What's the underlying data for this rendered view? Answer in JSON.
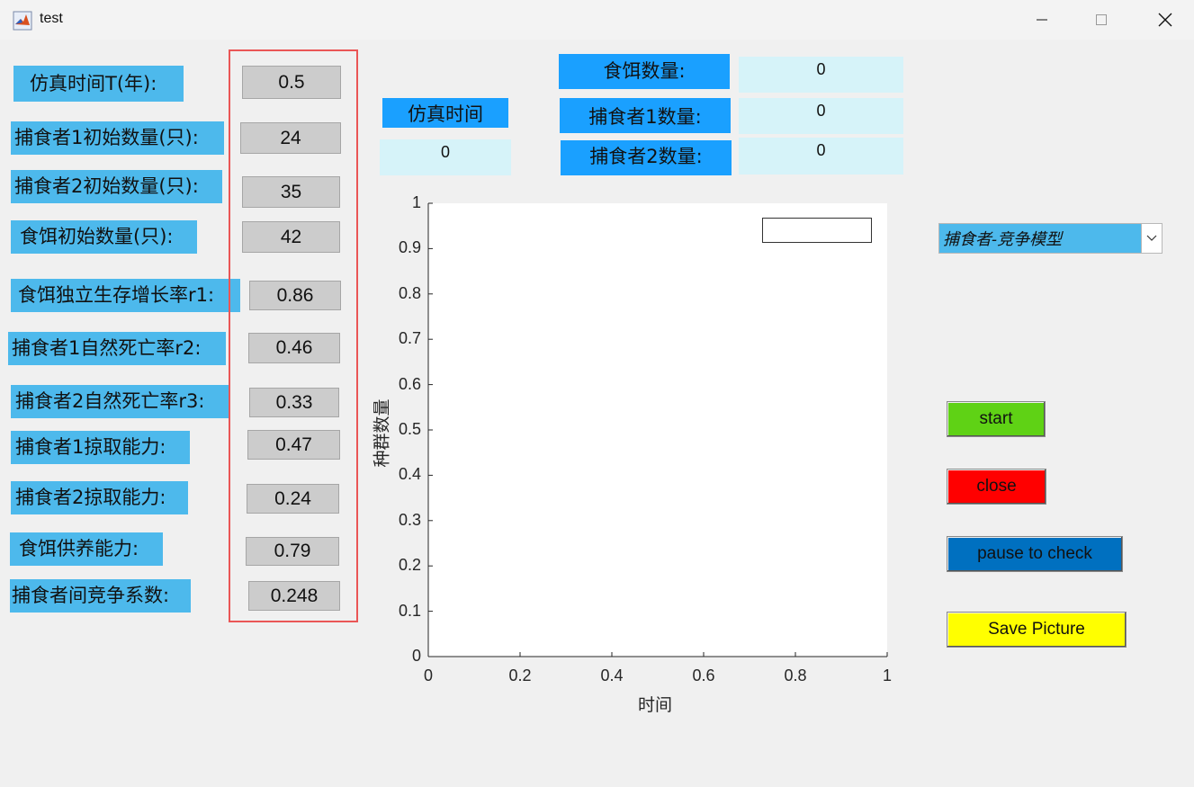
{
  "window": {
    "title": "test",
    "controls": [
      "minimize-icon",
      "maximize-icon",
      "close-icon"
    ]
  },
  "params": [
    {
      "label": "仿真时间T(年):",
      "value": "0.5"
    },
    {
      "label": "捕食者1初始数量(只):",
      "value": "24"
    },
    {
      "label": "捕食者2初始数量(只):",
      "value": "35"
    },
    {
      "label": "食饵初始数量(只):",
      "value": "42"
    },
    {
      "label": "食饵独立生存增长率r1:",
      "value": "0.86"
    },
    {
      "label": "捕食者1自然死亡率r2:",
      "value": "0.46"
    },
    {
      "label": "捕食者2自然死亡率r3:",
      "value": "0.33"
    },
    {
      "label": "捕食者1掠取能力:",
      "value": "0.47"
    },
    {
      "label": "捕食者2掠取能力:",
      "value": "0.24"
    },
    {
      "label": "食饵供养能力:",
      "value": "0.79"
    },
    {
      "label": "捕食者间竞争系数:",
      "value": "0.248"
    }
  ],
  "sim_time": {
    "label": "仿真时间",
    "value": "0"
  },
  "counts": [
    {
      "label": "食饵数量:",
      "value": "0"
    },
    {
      "label": "捕食者1数量:",
      "value": "0"
    },
    {
      "label": "捕食者2数量:",
      "value": "0"
    }
  ],
  "chart_data": {
    "type": "line",
    "title": "",
    "xlabel": "时间",
    "ylabel": "种群数量",
    "xlim": [
      0,
      1
    ],
    "ylim": [
      0,
      1
    ],
    "xticks": [
      "0",
      "0.2",
      "0.4",
      "0.6",
      "0.8",
      "1"
    ],
    "yticks": [
      "0",
      "0.1",
      "0.2",
      "0.3",
      "0.4",
      "0.5",
      "0.6",
      "0.7",
      "0.8",
      "0.9",
      "1"
    ],
    "series": [],
    "legend_placement": "top-right",
    "grid": false
  },
  "model_select": {
    "selected": "捕食者-竞争模型"
  },
  "buttons": {
    "start": {
      "label": "start",
      "color": "#5fd215"
    },
    "close": {
      "label": "close",
      "color": "#ff0000"
    },
    "pause": {
      "label": "pause to check",
      "color": "#0070c0"
    },
    "save": {
      "label": "Save Picture",
      "color": "#ffff00"
    }
  },
  "highlight_color": "#ea5656"
}
